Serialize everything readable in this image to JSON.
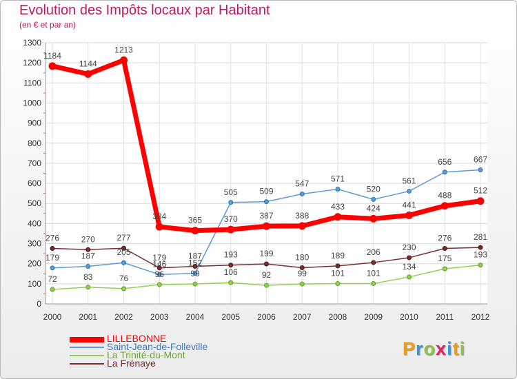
{
  "chart_data": {
    "type": "line",
    "title": "Evolution des Impôts locaux par Habitant",
    "subtitle": "(en € et par an)",
    "xlabel": "",
    "ylabel": "",
    "ylim": [
      0,
      1300
    ],
    "yticks": [
      0,
      100,
      200,
      300,
      400,
      500,
      600,
      700,
      800,
      900,
      1000,
      1100,
      1200,
      1300
    ],
    "grid": true,
    "legend_position": "bottom-left",
    "x": [
      "2000",
      "2001",
      "2002",
      "2003",
      "2004",
      "2005",
      "2006",
      "2007",
      "2008",
      "2009",
      "2010",
      "2011",
      "2012"
    ],
    "series": [
      {
        "name": "LILLEBONNE",
        "color": "#ff0000",
        "values": [
          1184,
          1144,
          1213,
          384,
          365,
          370,
          387,
          388,
          433,
          424,
          441,
          488,
          512
        ]
      },
      {
        "name": "Saint-Jean-de-Folleville",
        "color": "#5b9bd5",
        "values": [
          179,
          187,
          205,
          146,
          152,
          505,
          509,
          547,
          571,
          520,
          561,
          656,
          667
        ]
      },
      {
        "name": "La Trinité-du-Mont",
        "color": "#92d050",
        "values": [
          72,
          83,
          76,
          96,
          99,
          106,
          92,
          99,
          101,
          101,
          134,
          175,
          193
        ]
      },
      {
        "name": "La Frénaye",
        "color": "#7b2c2c",
        "values": [
          276,
          270,
          277,
          179,
          187,
          193,
          199,
          180,
          189,
          206,
          230,
          276,
          281
        ]
      }
    ],
    "labels": [
      {
        "series": 0,
        "values": [
          "1184",
          "1144",
          "1213",
          "384",
          "365",
          "370",
          "387",
          "388",
          "433",
          "424",
          "441",
          "488",
          "512"
        ]
      },
      {
        "series": 1,
        "values": [
          "179",
          "187",
          "205",
          "146",
          "152",
          "505",
          "509",
          "547",
          "571",
          "520",
          "561",
          "656",
          "667"
        ]
      },
      {
        "series": 2,
        "values": [
          "72",
          "83",
          "76",
          "96",
          "99",
          "106",
          "92",
          "99",
          "101",
          "101",
          "134",
          "175",
          "193"
        ]
      },
      {
        "series": 3,
        "values": [
          "276",
          "270",
          "277",
          "179",
          "187",
          "193",
          "199",
          "180",
          "189",
          "206",
          "230",
          "276",
          "281"
        ]
      }
    ]
  },
  "logo": {
    "letters": [
      "P",
      "r",
      "o",
      "x",
      "i",
      "t",
      "i"
    ],
    "colors": [
      "#f39c12",
      "#3498db",
      "#8bc34a",
      "#e91e63",
      "#3498db",
      "#f39c12",
      "#8bc34a"
    ]
  }
}
